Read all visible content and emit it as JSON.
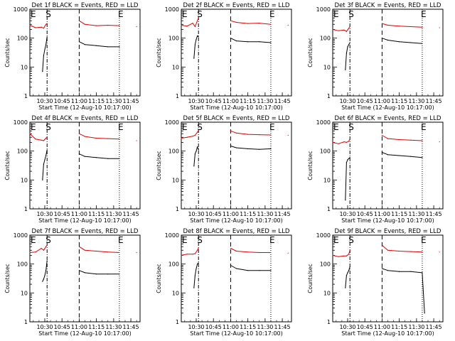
{
  "chart_data": [
    {
      "type": "line",
      "title": "Det 1f BLACK = Events, RED = LLD",
      "xlabel": "Start Time (12-Aug-10 10:17:00)",
      "ylabel": "Counts/sec",
      "xlim": [
        "10:17",
        "11:53"
      ],
      "ylim": [
        1,
        1000
      ],
      "yscale": "log",
      "x_ticks": [
        "10:30",
        "10:45",
        "11:00",
        "11:15",
        "11:30",
        "11:45"
      ],
      "y_ticks": [
        "1",
        "10",
        "100",
        "1000"
      ],
      "markers": [
        {
          "label": "E",
          "time": "10:17",
          "style": "solid"
        },
        {
          "label": "S",
          "time": "10:32",
          "style": "dashdot"
        },
        {
          "label": "",
          "time": "11:00",
          "style": "dashed"
        },
        {
          "label": "E",
          "time": "11:35",
          "style": "dotted"
        }
      ],
      "series": [
        {
          "name": "Events",
          "color": "#000000",
          "x": [
            "10:28",
            "10:29",
            "10:30",
            "10:31",
            "10:32",
            "11:00",
            "11:05",
            "11:15",
            "11:25",
            "11:35"
          ],
          "y": [
            7,
            25,
            40,
            60,
            110,
            75,
            60,
            55,
            50,
            50
          ]
        },
        {
          "name": "LLD",
          "color": "#e00000",
          "x": [
            "10:17",
            "10:22",
            "10:27",
            "10:29",
            "10:31",
            "10:32",
            "11:00",
            "11:05",
            "11:15",
            "11:25",
            "11:35",
            "11:50"
          ],
          "y": [
            280,
            230,
            240,
            220,
            300,
            320,
            400,
            300,
            270,
            280,
            270,
            250
          ]
        }
      ]
    },
    {
      "type": "line",
      "title": "Det 2f BLACK = Events, RED = LLD",
      "xlabel": "Start Time (12-Aug-10 10:17:00)",
      "ylabel": "Counts/sec",
      "xlim": [
        "10:17",
        "11:53"
      ],
      "ylim": [
        1,
        1000
      ],
      "yscale": "log",
      "x_ticks": [
        "10:30",
        "10:45",
        "11:00",
        "11:15",
        "11:30",
        "11:45"
      ],
      "y_ticks": [
        "1",
        "10",
        "100",
        "1000"
      ],
      "markers": [
        {
          "label": "E",
          "time": "10:17",
          "style": "solid"
        },
        {
          "label": "S",
          "time": "10:32",
          "style": "dashdot"
        },
        {
          "label": "",
          "time": "11:00",
          "style": "dashed"
        },
        {
          "label": "E",
          "time": "11:35",
          "style": "dotted"
        }
      ],
      "series": [
        {
          "name": "Events",
          "color": "#000000",
          "x": [
            "10:28",
            "10:29",
            "10:30",
            "10:31",
            "10:32",
            "11:00",
            "11:05",
            "11:15",
            "11:25",
            "11:35"
          ],
          "y": [
            20,
            60,
            90,
            120,
            110,
            100,
            80,
            75,
            75,
            70
          ]
        },
        {
          "name": "LLD",
          "color": "#e00000",
          "x": [
            "10:17",
            "10:22",
            "10:27",
            "10:29",
            "10:31",
            "10:32",
            "11:00",
            "11:05",
            "11:15",
            "11:25",
            "11:35",
            "11:50"
          ],
          "y": [
            280,
            260,
            330,
            250,
            400,
            500,
            400,
            350,
            320,
            330,
            300,
            280
          ]
        }
      ]
    },
    {
      "type": "line",
      "title": "Det 3f BLACK = Events, RED = LLD",
      "xlabel": "Start Time (12-Aug-10 10:17:00)",
      "ylabel": "Counts/sec",
      "xlim": [
        "10:17",
        "11:53"
      ],
      "ylim": [
        1,
        1000
      ],
      "yscale": "log",
      "x_ticks": [
        "10:30",
        "10:45",
        "11:00",
        "11:15",
        "11:30",
        "11:45"
      ],
      "y_ticks": [
        "1",
        "10",
        "100",
        "1000"
      ],
      "markers": [
        {
          "label": "E",
          "time": "10:17",
          "style": "solid"
        },
        {
          "label": "S",
          "time": "10:32",
          "style": "dashdot"
        },
        {
          "label": "",
          "time": "11:00",
          "style": "dashed"
        },
        {
          "label": "E",
          "time": "11:35",
          "style": "dotted"
        }
      ],
      "series": [
        {
          "name": "Events",
          "color": "#000000",
          "x": [
            "10:28",
            "10:29",
            "10:30",
            "10:31",
            "10:32",
            "11:00",
            "11:05",
            "11:15",
            "11:25",
            "11:35"
          ],
          "y": [
            8,
            30,
            50,
            60,
            70,
            100,
            85,
            75,
            70,
            65
          ]
        },
        {
          "name": "LLD",
          "color": "#e00000",
          "x": [
            "10:17",
            "10:22",
            "10:27",
            "10:29",
            "10:31",
            "10:32",
            "11:00",
            "11:05",
            "11:15",
            "11:25",
            "11:35",
            "11:50"
          ],
          "y": [
            200,
            180,
            190,
            170,
            220,
            250,
            320,
            280,
            260,
            250,
            240,
            230
          ]
        }
      ]
    },
    {
      "type": "line",
      "title": "Det 4f BLACK = Events, RED = LLD",
      "xlabel": "Start Time (12-Aug-10 10:17:00)",
      "ylabel": "Counts/sec",
      "xlim": [
        "10:17",
        "11:53"
      ],
      "ylim": [
        1,
        1000
      ],
      "yscale": "log",
      "x_ticks": [
        "10:30",
        "10:45",
        "11:00",
        "11:15",
        "11:30",
        "11:45"
      ],
      "y_ticks": [
        "1",
        "10",
        "100",
        "1000"
      ],
      "markers": [
        {
          "label": "E",
          "time": "10:17",
          "style": "solid"
        },
        {
          "label": "S",
          "time": "10:32",
          "style": "dashdot"
        },
        {
          "label": "",
          "time": "11:00",
          "style": "dashed"
        },
        {
          "label": "E",
          "time": "11:35",
          "style": "dotted"
        }
      ],
      "series": [
        {
          "name": "Events",
          "color": "#000000",
          "x": [
            "10:28",
            "10:29",
            "10:30",
            "10:31",
            "10:32",
            "11:00",
            "11:05",
            "11:15",
            "11:25",
            "11:35"
          ],
          "y": [
            10,
            35,
            50,
            70,
            110,
            80,
            65,
            60,
            55,
            55
          ]
        },
        {
          "name": "LLD",
          "color": "#e00000",
          "x": [
            "10:17",
            "10:22",
            "10:27",
            "10:29",
            "10:31",
            "10:32",
            "11:00",
            "11:05",
            "11:15",
            "11:25",
            "11:35",
            "11:50"
          ],
          "y": [
            400,
            260,
            240,
            230,
            280,
            300,
            400,
            320,
            280,
            270,
            260,
            230
          ]
        }
      ]
    },
    {
      "type": "line",
      "title": "Det 5f BLACK = Events, RED = LLD",
      "xlabel": "Start Time (12-Aug-10 10:17:00)",
      "ylabel": "Counts/sec",
      "xlim": [
        "10:17",
        "11:53"
      ],
      "ylim": [
        1,
        1000
      ],
      "yscale": "log",
      "x_ticks": [
        "10:30",
        "10:45",
        "11:00",
        "11:15",
        "11:30",
        "11:45"
      ],
      "y_ticks": [
        "1",
        "10",
        "100",
        "1000"
      ],
      "markers": [
        {
          "label": "E",
          "time": "10:17",
          "style": "solid"
        },
        {
          "label": "S",
          "time": "10:32",
          "style": "dashdot"
        },
        {
          "label": "",
          "time": "11:00",
          "style": "dashed"
        },
        {
          "label": "E",
          "time": "11:35",
          "style": "dotted"
        }
      ],
      "series": [
        {
          "name": "Events",
          "color": "#000000",
          "x": [
            "10:28",
            "10:29",
            "10:30",
            "10:31",
            "10:32",
            "11:00",
            "11:05",
            "11:15",
            "11:25",
            "11:35"
          ],
          "y": [
            30,
            80,
            100,
            140,
            110,
            150,
            130,
            120,
            115,
            120
          ]
        },
        {
          "name": "LLD",
          "color": "#e00000",
          "x": [
            "10:17",
            "10:22",
            "10:27",
            "10:29",
            "10:31",
            "10:32",
            "11:00",
            "11:05",
            "11:15",
            "11:25",
            "11:35",
            "11:50"
          ],
          "y": [
            280,
            300,
            330,
            350,
            450,
            500,
            500,
            420,
            380,
            370,
            360,
            350
          ]
        }
      ]
    },
    {
      "type": "line",
      "title": "Det 6f BLACK = Events, RED = LLD",
      "xlabel": "Start Time (12-Aug-10 10:17:00)",
      "ylabel": "Counts/sec",
      "xlim": [
        "10:17",
        "11:53"
      ],
      "ylim": [
        1,
        1000
      ],
      "yscale": "log",
      "x_ticks": [
        "10:30",
        "10:45",
        "11:00",
        "11:15",
        "11:30",
        "11:45"
      ],
      "y_ticks": [
        "1",
        "10",
        "100",
        "1000"
      ],
      "markers": [
        {
          "label": "E",
          "time": "10:17",
          "style": "solid"
        },
        {
          "label": "S",
          "time": "10:32",
          "style": "dashdot"
        },
        {
          "label": "",
          "time": "11:00",
          "style": "dashed"
        },
        {
          "label": "E",
          "time": "11:35",
          "style": "dotted"
        }
      ],
      "series": [
        {
          "name": "Events",
          "color": "#000000",
          "x": [
            "10:28",
            "10:29",
            "10:30",
            "10:31",
            "10:32",
            "11:00",
            "11:05",
            "11:15",
            "11:25",
            "11:35"
          ],
          "y": [
            2,
            40,
            50,
            55,
            60,
            90,
            75,
            70,
            65,
            60
          ]
        },
        {
          "name": "LLD",
          "color": "#e00000",
          "x": [
            "10:17",
            "10:22",
            "10:27",
            "10:29",
            "10:31",
            "10:32",
            "11:00",
            "11:05",
            "11:15",
            "11:25",
            "11:35",
            "11:50"
          ],
          "y": [
            200,
            180,
            210,
            200,
            220,
            260,
            350,
            270,
            250,
            240,
            230,
            210
          ]
        }
      ]
    },
    {
      "type": "line",
      "title": "Det 7f BLACK = Events, RED = LLD",
      "xlabel": "Start Time (12-Aug-10 10:17:00)",
      "ylabel": "Counts/sec",
      "xlim": [
        "10:17",
        "11:53"
      ],
      "ylim": [
        1,
        1000
      ],
      "yscale": "log",
      "x_ticks": [
        "10:30",
        "10:45",
        "11:00",
        "11:15",
        "11:30",
        "11:45"
      ],
      "y_ticks": [
        "1",
        "10",
        "100",
        "1000"
      ],
      "markers": [
        {
          "label": "E",
          "time": "10:17",
          "style": "solid"
        },
        {
          "label": "S",
          "time": "10:32",
          "style": "dashdot"
        },
        {
          "label": "",
          "time": "11:00",
          "style": "dashed"
        },
        {
          "label": "E",
          "time": "11:35",
          "style": "dotted"
        }
      ],
      "series": [
        {
          "name": "Events",
          "color": "#000000",
          "x": [
            "10:28",
            "10:29",
            "10:30",
            "10:31",
            "10:32",
            "11:00",
            "11:05",
            "11:15",
            "11:25",
            "11:35"
          ],
          "y": [
            25,
            30,
            40,
            60,
            130,
            60,
            50,
            45,
            45,
            45
          ]
        },
        {
          "name": "LLD",
          "color": "#e00000",
          "x": [
            "10:17",
            "10:22",
            "10:27",
            "10:29",
            "10:31",
            "10:32",
            "11:00",
            "11:05",
            "11:15",
            "11:25",
            "11:35",
            "11:50"
          ],
          "y": [
            250,
            260,
            350,
            300,
            400,
            450,
            400,
            300,
            280,
            260,
            250,
            250
          ]
        }
      ]
    },
    {
      "type": "line",
      "title": "Det 8f BLACK = Events, RED = LLD",
      "xlabel": "Start Time (12-Aug-10 10:17:00)",
      "ylabel": "Counts/sec",
      "xlim": [
        "10:17",
        "11:53"
      ],
      "ylim": [
        1,
        1000
      ],
      "yscale": "log",
      "x_ticks": [
        "10:30",
        "10:45",
        "11:00",
        "11:15",
        "11:30",
        "11:45"
      ],
      "y_ticks": [
        "1",
        "10",
        "100",
        "1000"
      ],
      "markers": [
        {
          "label": "E",
          "time": "10:17",
          "style": "solid"
        },
        {
          "label": "S",
          "time": "10:32",
          "style": "dashdot"
        },
        {
          "label": "",
          "time": "11:00",
          "style": "dashed"
        },
        {
          "label": "E",
          "time": "11:35",
          "style": "dotted"
        }
      ],
      "series": [
        {
          "name": "Events",
          "color": "#000000",
          "x": [
            "10:28",
            "10:29",
            "10:30",
            "10:31",
            "10:32",
            "11:00",
            "11:05",
            "11:15",
            "11:25",
            "11:35"
          ],
          "y": [
            15,
            40,
            70,
            100,
            110,
            90,
            70,
            60,
            60,
            60
          ]
        },
        {
          "name": "LLD",
          "color": "#e00000",
          "x": [
            "10:17",
            "10:22",
            "10:27",
            "10:29",
            "10:31",
            "10:32",
            "11:00",
            "11:05",
            "11:15",
            "11:25",
            "11:35",
            "11:50"
          ],
          "y": [
            200,
            220,
            220,
            230,
            300,
            350,
            350,
            280,
            260,
            250,
            250,
            240
          ]
        }
      ]
    },
    {
      "type": "line",
      "title": "Det 9f BLACK = Events, RED = LLD",
      "xlabel": "Start Time (12-Aug-10 10:17:00)",
      "ylabel": "Counts/sec",
      "xlim": [
        "10:17",
        "11:53"
      ],
      "ylim": [
        1,
        1000
      ],
      "yscale": "log",
      "x_ticks": [
        "10:30",
        "10:45",
        "11:00",
        "11:15",
        "11:30",
        "11:45"
      ],
      "y_ticks": [
        "1",
        "10",
        "100",
        "1000"
      ],
      "markers": [
        {
          "label": "E",
          "time": "10:17",
          "style": "solid"
        },
        {
          "label": "S",
          "time": "10:32",
          "style": "dashdot"
        },
        {
          "label": "",
          "time": "11:00",
          "style": "dashed"
        },
        {
          "label": "E",
          "time": "11:35",
          "style": "dotted"
        }
      ],
      "series": [
        {
          "name": "Events",
          "color": "#000000",
          "x": [
            "10:28",
            "10:29",
            "10:30",
            "10:31",
            "10:32",
            "11:00",
            "11:05",
            "11:15",
            "11:25",
            "11:35",
            "11:37"
          ],
          "y": [
            15,
            40,
            50,
            60,
            80,
            70,
            60,
            55,
            55,
            50,
            2
          ]
        },
        {
          "name": "LLD",
          "color": "#e00000",
          "x": [
            "10:17",
            "10:22",
            "10:27",
            "10:29",
            "10:31",
            "10:32",
            "11:00",
            "11:05",
            "11:15",
            "11:25",
            "11:35",
            "11:50"
          ],
          "y": [
            200,
            180,
            190,
            190,
            220,
            300,
            450,
            300,
            280,
            270,
            260,
            260
          ]
        }
      ]
    }
  ]
}
